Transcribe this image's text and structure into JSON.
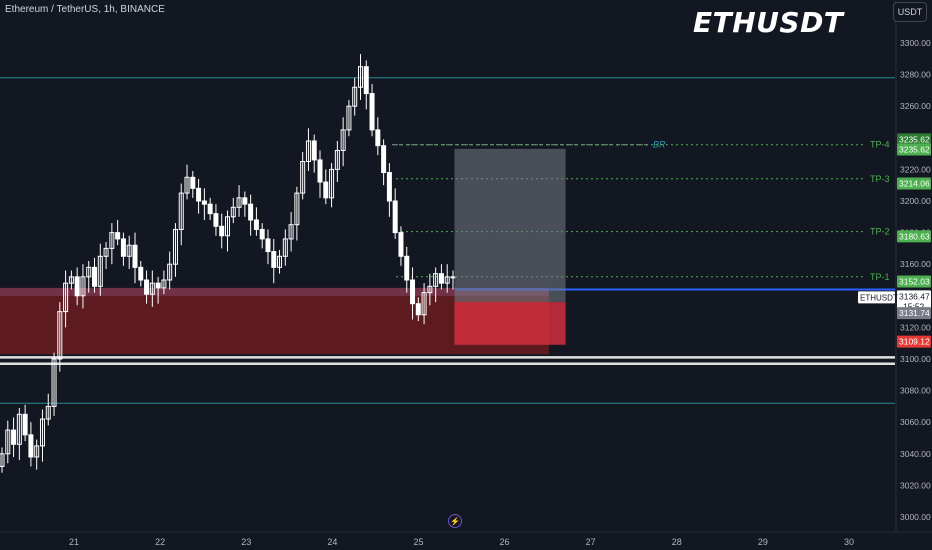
{
  "header": {
    "symbol_line": "Ethereum / TetherUS, 1h, BINANCE",
    "big_title": "ETHUSDT",
    "currency_button": "USDT"
  },
  "colors": {
    "background": "#131722",
    "candle": "#ffffff",
    "demand_zone": "#6b1c1f",
    "tp_line": "#4caf50",
    "tp_badge": "#4caf50",
    "sl_badge": "#e53935",
    "price_badge": "#ffffff",
    "blue_line": "#2962ff",
    "teal_line": "#2a8c9a",
    "br_line": "#9598a1"
  },
  "chart_data": {
    "type": "candlestick",
    "symbol": "ETHUSDT",
    "timeframe": "1h",
    "exchange": "BINANCE",
    "y_axis": {
      "ticks": [
        3000,
        3020,
        3040,
        3060,
        3080,
        3100,
        3120,
        3140,
        3160,
        3180,
        3200,
        3220,
        3240,
        3260,
        3280,
        3300
      ],
      "tick_labels": [
        "3000.00",
        "3020.00",
        "3040.00",
        "3060.00",
        "3080.00",
        "3100.00",
        "3120.00",
        "3140.00",
        "3160.00",
        "3180.00",
        "3200.00",
        "3220.00",
        "3240.00",
        "3260.00",
        "3280.00",
        "3300.00"
      ],
      "range": [
        2997,
        3310
      ]
    },
    "x_axis": {
      "tick_labels": [
        "21",
        "22",
        "23",
        "24",
        "25",
        "26",
        "27",
        "28",
        "29",
        "30"
      ],
      "day_range": [
        20.5,
        30.2
      ]
    },
    "series_close": [
      3040,
      3055,
      3046,
      3065,
      3052,
      3038,
      3045,
      3062,
      3070,
      3100,
      3130,
      3148,
      3152,
      3140,
      3152,
      3158,
      3146,
      3165,
      3170,
      3180,
      3176,
      3165,
      3172,
      3158,
      3150,
      3141,
      3148,
      3145,
      3150,
      3160,
      3182,
      3205,
      3215,
      3208,
      3200,
      3198,
      3192,
      3184,
      3178,
      3190,
      3196,
      3202,
      3198,
      3188,
      3182,
      3176,
      3168,
      3158,
      3165,
      3176,
      3185,
      3205,
      3225,
      3238,
      3226,
      3212,
      3202,
      3220,
      3232,
      3245,
      3260,
      3272,
      3285,
      3268,
      3245,
      3235,
      3218,
      3200,
      3180,
      3165,
      3150,
      3135,
      3128,
      3142,
      3146,
      3154,
      3148,
      3152,
      3152
    ],
    "horizontal_lines": [
      {
        "price": 3278,
        "color": "teal"
      },
      {
        "price": 3235.62,
        "label": "BR",
        "style": "dashed"
      },
      {
        "price": 3144,
        "color": "blue"
      },
      {
        "price": 3101,
        "color": "white"
      },
      {
        "price": 3097,
        "color": "white"
      },
      {
        "price": 3072,
        "color": "teal"
      }
    ],
    "take_profits": [
      {
        "label": "TP-4",
        "price": 3235.62,
        "badge": "3235.62"
      },
      {
        "label": "TP-3",
        "price": 3214.06,
        "badge": "3214.06"
      },
      {
        "label": "TP-2",
        "price": 3180.63,
        "badge": "3180.63"
      },
      {
        "label": "TP-1",
        "price": 3152.03,
        "badge": "3152.03"
      }
    ],
    "price_scale_badges": {
      "br_badge": "3235.62",
      "current_symbol": "ETHUSDT",
      "current_price": "3136.47",
      "countdown": "15:52",
      "entry_price": "3131.74",
      "stop_loss": "3109.12"
    },
    "demand_zone": {
      "top": 3145,
      "bottom": 3103
    },
    "position": {
      "entry": 3136,
      "target": 3233,
      "stop": 3109,
      "start_day": 25.43,
      "end_day": 26.72
    }
  }
}
